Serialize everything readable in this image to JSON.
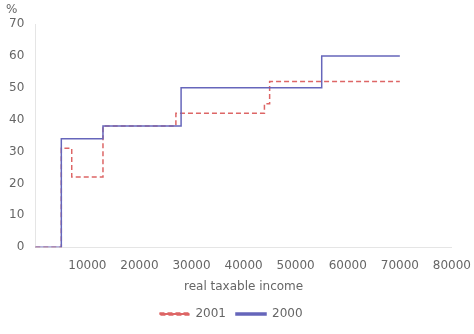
{
  "chart_data": {
    "type": "line",
    "xlabel": "real taxable income",
    "annotation": "%",
    "series": [
      {
        "name": "2000",
        "color": "#6666bb",
        "line_style": "solid",
        "x": [
          0,
          5000,
          5000,
          13000,
          13000,
          28000,
          28000,
          55000,
          55000,
          70000
        ],
        "values": [
          0,
          0,
          34,
          34,
          38,
          38,
          50,
          50,
          60,
          60
        ]
      },
      {
        "name": "2001",
        "color": "#dd6666",
        "line_style": "dashed",
        "x": [
          0,
          5000,
          5000,
          7000,
          7000,
          13000,
          13000,
          27000,
          27000,
          44000,
          44000,
          45000,
          45000,
          70000
        ],
        "values": [
          0,
          0,
          31,
          31,
          22,
          22,
          38,
          38,
          42,
          42,
          45,
          45,
          52,
          52
        ]
      }
    ],
    "xlim": [
      0,
      80000
    ],
    "ylim": [
      0,
      70
    ],
    "xticks": [
      10000,
      20000,
      30000,
      40000,
      50000,
      60000,
      70000,
      80000
    ],
    "yticks": [
      0,
      10,
      20,
      30,
      40,
      50,
      60,
      70
    ],
    "grid": false,
    "legend": "bottom"
  }
}
